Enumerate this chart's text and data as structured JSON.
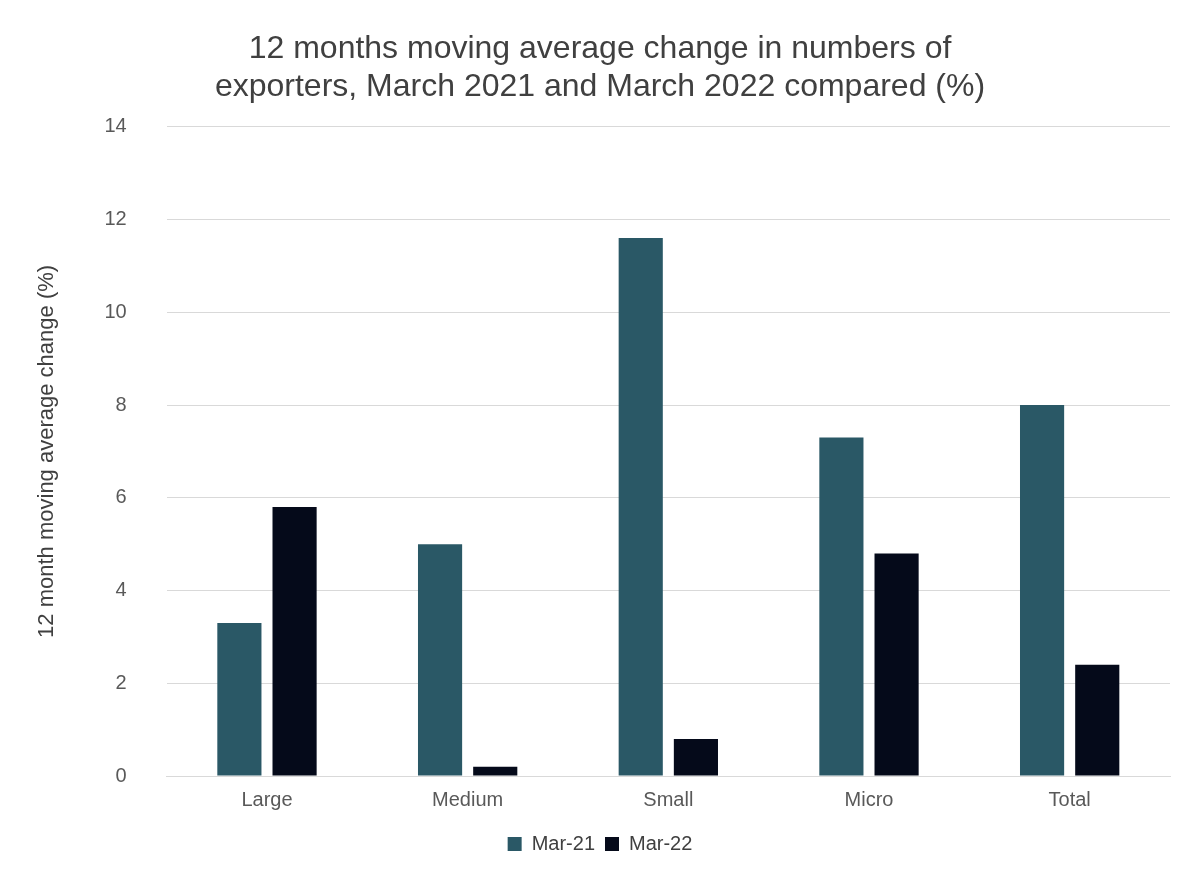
{
  "chart_data": {
    "type": "bar",
    "title": "12 months moving average change in numbers of exporters, March 2021 and March 2022 compared (%)",
    "ylabel": "12 month moving average change (%)",
    "categories": [
      "Large",
      "Medium",
      "Small",
      "Micro",
      "Total"
    ],
    "series": [
      {
        "name": "Mar-21",
        "color": "#2a5866",
        "values": [
          3.3,
          5.0,
          11.6,
          7.3,
          8.0
        ]
      },
      {
        "name": "Mar-22",
        "color": "#050a1a",
        "values": [
          5.8,
          0.2,
          0.8,
          4.8,
          2.4
        ]
      }
    ],
    "ylim": [
      0,
      14
    ],
    "yticks": [
      0,
      2,
      4,
      6,
      8,
      10,
      12,
      14
    ],
    "grid": "y",
    "legend": "bottom"
  }
}
